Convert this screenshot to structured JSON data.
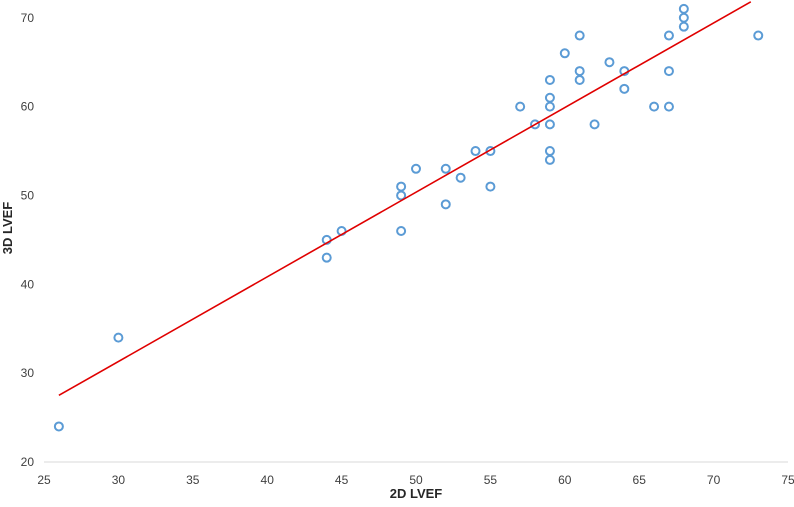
{
  "chart_data": {
    "type": "scatter",
    "title": "",
    "xlabel": "2D LVEF",
    "ylabel": "3D LVEF",
    "xlim": [
      25,
      75
    ],
    "ylim": [
      20,
      72
    ],
    "x_ticks": [
      25,
      30,
      35,
      40,
      45,
      50,
      55,
      60,
      65,
      70,
      75
    ],
    "y_ticks": [
      20,
      30,
      40,
      50,
      60,
      70
    ],
    "grid": false,
    "legend": "none",
    "marker_color": "#5b9bd5",
    "trendline_color": "#e00000",
    "points": [
      [
        26,
        24
      ],
      [
        30,
        34
      ],
      [
        44,
        45
      ],
      [
        44,
        43
      ],
      [
        45,
        46
      ],
      [
        49,
        51
      ],
      [
        49,
        50
      ],
      [
        49,
        46
      ],
      [
        50,
        53
      ],
      [
        52,
        53
      ],
      [
        52,
        49
      ],
      [
        53,
        52
      ],
      [
        54,
        55
      ],
      [
        55,
        55
      ],
      [
        55,
        51
      ],
      [
        57,
        60
      ],
      [
        58,
        58
      ],
      [
        59,
        63
      ],
      [
        59,
        61
      ],
      [
        59,
        60
      ],
      [
        59,
        58
      ],
      [
        59,
        55
      ],
      [
        59,
        54
      ],
      [
        60,
        66
      ],
      [
        61,
        68
      ],
      [
        61,
        64
      ],
      [
        61,
        63
      ],
      [
        62,
        58
      ],
      [
        63,
        65
      ],
      [
        64,
        64
      ],
      [
        64,
        62
      ],
      [
        66,
        60
      ],
      [
        67,
        68
      ],
      [
        67,
        64
      ],
      [
        67,
        60
      ],
      [
        68,
        71
      ],
      [
        68,
        70
      ],
      [
        68,
        69
      ],
      [
        73,
        68
      ]
    ],
    "trendline": {
      "x": [
        26,
        72.5
      ],
      "y": [
        27.5,
        71.8
      ]
    }
  }
}
